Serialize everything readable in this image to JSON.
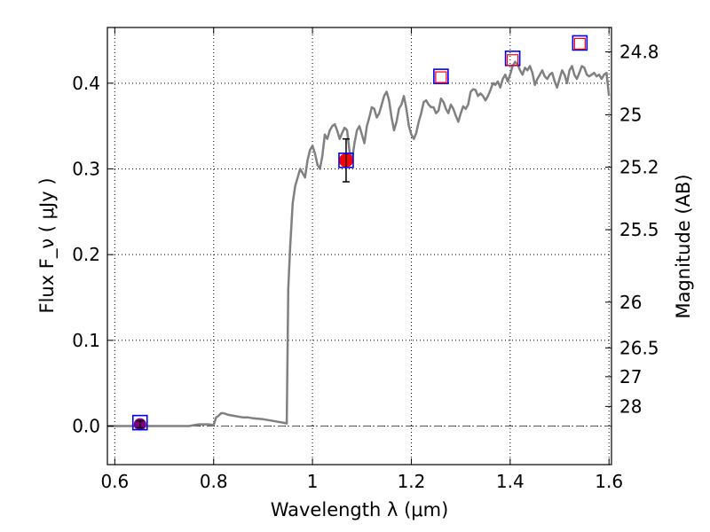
{
  "chart_data": {
    "type": "line",
    "xlabel": "Wavelength  λ (μm)",
    "ylabel": "Flux  F_ν  ( μJy )",
    "ylabel_right": "Magnitude (AB)",
    "xlim": [
      0.585,
      1.605
    ],
    "ylim": [
      -0.045,
      0.465
    ],
    "grid": true,
    "x_ticks": [
      0.6,
      0.8,
      1.0,
      1.2,
      1.4,
      1.6
    ],
    "x_tick_labels": [
      "0.6",
      "0.8",
      "1",
      "1.2",
      "1.4",
      "1.6"
    ],
    "y_ticks": [
      0.0,
      0.1,
      0.2,
      0.3,
      0.4
    ],
    "y_tick_labels": [
      "0.0",
      "0.1",
      "0.2",
      "0.3",
      "0.4"
    ],
    "mag_ticks": [
      24.8,
      25,
      25.2,
      25.5,
      26,
      26.5,
      27,
      28
    ],
    "mag_tick_labels": [
      "24.8",
      "25",
      "25.2",
      "25.5",
      "26",
      "26.5",
      "27",
      "28"
    ],
    "colors": {
      "model": "#808080",
      "obs_marker": "#ff0000",
      "model_box": "#0000ff",
      "undetected": "#800080",
      "errorbar": "#000000",
      "zero_line": "#555555"
    },
    "model_spectrum": {
      "x": [
        0.585,
        0.6,
        0.65,
        0.7,
        0.75,
        0.77,
        0.79,
        0.8,
        0.805,
        0.81,
        0.815,
        0.82,
        0.83,
        0.84,
        0.85,
        0.86,
        0.87,
        0.88,
        0.9,
        0.92,
        0.93,
        0.94,
        0.948,
        0.951,
        0.955,
        0.96,
        0.965,
        0.97,
        0.975,
        0.98,
        0.985,
        0.99,
        0.995,
        1.0,
        1.005,
        1.01,
        1.015,
        1.02,
        1.025,
        1.03,
        1.035,
        1.04,
        1.045,
        1.05,
        1.055,
        1.06,
        1.065,
        1.07,
        1.075,
        1.08,
        1.085,
        1.09,
        1.095,
        1.1,
        1.105,
        1.11,
        1.115,
        1.12,
        1.125,
        1.13,
        1.135,
        1.14,
        1.145,
        1.15,
        1.155,
        1.16,
        1.165,
        1.17,
        1.175,
        1.18,
        1.185,
        1.19,
        1.195,
        1.2,
        1.205,
        1.21,
        1.215,
        1.22,
        1.225,
        1.23,
        1.235,
        1.24,
        1.245,
        1.25,
        1.255,
        1.26,
        1.265,
        1.27,
        1.275,
        1.28,
        1.285,
        1.29,
        1.295,
        1.3,
        1.305,
        1.31,
        1.315,
        1.32,
        1.325,
        1.33,
        1.335,
        1.34,
        1.345,
        1.35,
        1.355,
        1.36,
        1.365,
        1.37,
        1.375,
        1.38,
        1.385,
        1.39,
        1.395,
        1.4,
        1.405,
        1.41,
        1.415,
        1.42,
        1.425,
        1.43,
        1.435,
        1.44,
        1.445,
        1.45,
        1.455,
        1.46,
        1.465,
        1.47,
        1.475,
        1.48,
        1.485,
        1.49,
        1.495,
        1.5,
        1.505,
        1.51,
        1.515,
        1.52,
        1.525,
        1.53,
        1.535,
        1.54,
        1.545,
        1.55,
        1.555,
        1.56,
        1.565,
        1.57,
        1.575,
        1.58,
        1.585,
        1.59,
        1.595,
        1.6
      ],
      "y": [
        0.0,
        0.0,
        0.0,
        0.0,
        0.0,
        0.002,
        0.002,
        0.001,
        0.01,
        0.012,
        0.015,
        0.015,
        0.013,
        0.012,
        0.011,
        0.01,
        0.01,
        0.009,
        0.008,
        0.006,
        0.005,
        0.004,
        0.003,
        0.16,
        0.21,
        0.26,
        0.28,
        0.29,
        0.3,
        0.295,
        0.29,
        0.31,
        0.322,
        0.327,
        0.318,
        0.305,
        0.3,
        0.315,
        0.34,
        0.335,
        0.345,
        0.35,
        0.352,
        0.345,
        0.335,
        0.342,
        0.348,
        0.345,
        0.32,
        0.31,
        0.33,
        0.345,
        0.35,
        0.34,
        0.33,
        0.35,
        0.36,
        0.372,
        0.37,
        0.36,
        0.365,
        0.375,
        0.385,
        0.39,
        0.38,
        0.36,
        0.345,
        0.355,
        0.37,
        0.375,
        0.385,
        0.37,
        0.35,
        0.34,
        0.335,
        0.342,
        0.355,
        0.365,
        0.378,
        0.38,
        0.375,
        0.372,
        0.372,
        0.365,
        0.368,
        0.382,
        0.378,
        0.37,
        0.365,
        0.375,
        0.37,
        0.362,
        0.355,
        0.365,
        0.373,
        0.37,
        0.375,
        0.39,
        0.393,
        0.392,
        0.385,
        0.388,
        0.385,
        0.38,
        0.385,
        0.392,
        0.4,
        0.398,
        0.402,
        0.395,
        0.405,
        0.41,
        0.402,
        0.41,
        0.42,
        0.425,
        0.422,
        0.415,
        0.41,
        0.418,
        0.415,
        0.42,
        0.412,
        0.398,
        0.405,
        0.41,
        0.415,
        0.408,
        0.405,
        0.41,
        0.412,
        0.402,
        0.395,
        0.405,
        0.415,
        0.41,
        0.4,
        0.415,
        0.42,
        0.41,
        0.405,
        0.412,
        0.42,
        0.418,
        0.41,
        0.408,
        0.41,
        0.412,
        0.408,
        0.41,
        0.405,
        0.41,
        0.412,
        0.385
      ]
    },
    "zero_line": {
      "y": 0.0,
      "style": "dash-dot"
    },
    "observed_points": [
      {
        "x": 1.068,
        "y": 0.31,
        "yerr": 0.025
      }
    ],
    "undetected_points": [
      {
        "x": 0.651,
        "y": 0.002,
        "yerr": 0.004
      }
    ],
    "model_box_points": [
      {
        "x": 0.651,
        "y": 0.004
      },
      {
        "x": 1.068,
        "y": 0.31
      },
      {
        "x": 1.26,
        "y": 0.408
      },
      {
        "x": 1.405,
        "y": 0.429
      },
      {
        "x": 1.541,
        "y": 0.447
      }
    ],
    "upper_limit_points": [
      {
        "x": 1.26,
        "y": 0.407
      },
      {
        "x": 1.405,
        "y": 0.427
      },
      {
        "x": 1.541,
        "y": 0.446
      }
    ]
  }
}
